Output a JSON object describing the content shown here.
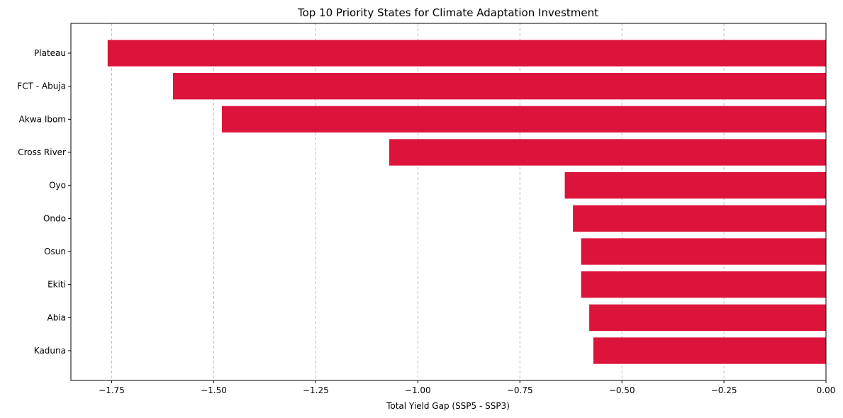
{
  "chart_data": {
    "type": "bar",
    "orientation": "horizontal",
    "title": "Top 10 Priority States for Climate Adaptation Investment",
    "xlabel": "Total Yield Gap (SSP5 - SSP3)",
    "ylabel": "",
    "categories": [
      "Plateau",
      "FCT - Abuja",
      "Akwa Ibom",
      "Cross River",
      "Oyo",
      "Ondo",
      "Osun",
      "Ekiti",
      "Abia",
      "Kaduna"
    ],
    "values": [
      -1.76,
      -1.6,
      -1.48,
      -1.07,
      -0.64,
      -0.62,
      -0.6,
      -0.6,
      -0.58,
      -0.57
    ],
    "xlim": [
      -1.85,
      0.0
    ],
    "xticks": [
      -1.75,
      -1.5,
      -1.25,
      -1.0,
      -0.75,
      -0.5,
      -0.25,
      0.0
    ],
    "xtick_labels": [
      "−1.75",
      "−1.50",
      "−1.25",
      "−1.00",
      "−0.75",
      "−0.50",
      "−0.25",
      "0.00"
    ],
    "grid": "x-dashed",
    "legend": "none",
    "bar_color": "#dc143c"
  }
}
